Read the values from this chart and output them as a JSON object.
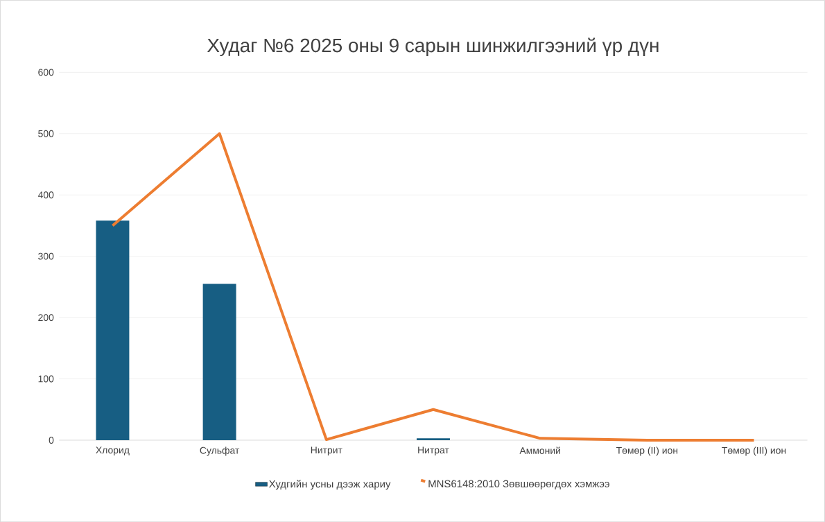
{
  "chart_data": {
    "type": "bar",
    "title": "Худаг №6 2025 оны 9 сарын шинжилгээний үр дүн",
    "categories": [
      "Хлорид",
      "Сульфат",
      "Нитрит",
      "Нитрат",
      "Аммоний",
      "Төмөр (II) ион",
      "Төмөр (III) ион"
    ],
    "series": [
      {
        "name": "Худгийн усны дээж хариу",
        "color": "#175e83",
        "values": [
          358,
          255,
          0,
          3,
          0,
          0,
          0
        ]
      },
      {
        "name": "MNS6148:2010 Зөвшөөрөгдөх хэмжээ",
        "type": "line",
        "color": "#ed7d31",
        "values": [
          350,
          500,
          1,
          50,
          3,
          0,
          0
        ]
      }
    ],
    "ylim": [
      0,
      600
    ],
    "yticks": [
      0,
      100,
      200,
      300,
      400,
      500,
      600
    ],
    "grid": "y",
    "legend": "bottom"
  }
}
